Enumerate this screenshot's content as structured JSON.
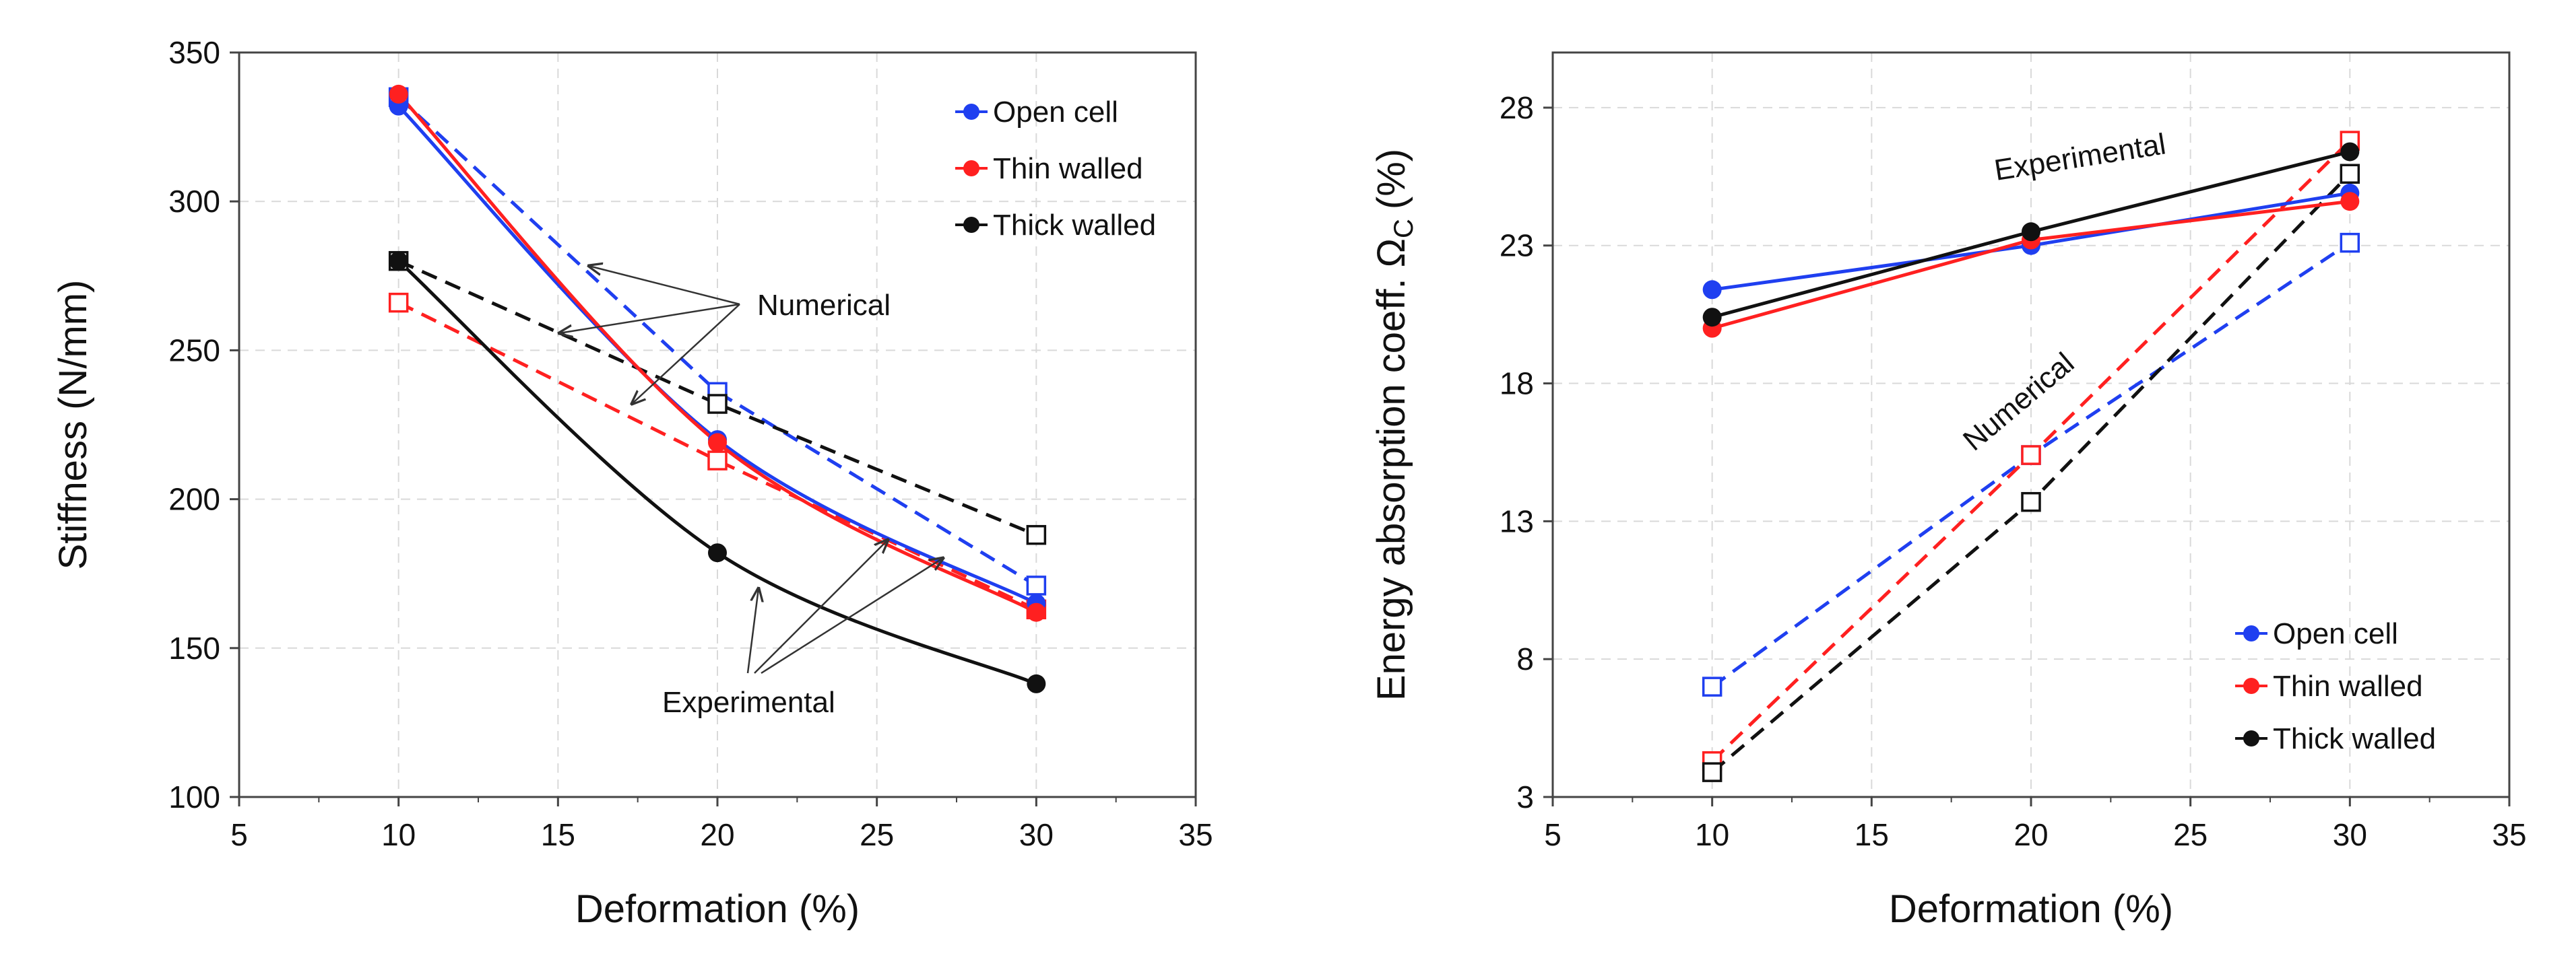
{
  "chart_data": [
    {
      "type": "line",
      "title": "",
      "xlabel": "Deformation (%)",
      "ylabel": "Stiffness (N/mm)",
      "xlim": [
        5,
        35
      ],
      "ylim": [
        100,
        350
      ],
      "xticks": [
        5,
        10,
        15,
        20,
        25,
        30,
        35
      ],
      "yticks": [
        100,
        150,
        200,
        250,
        300,
        350
      ],
      "grid": true,
      "legend_position": "top-right",
      "series": [
        {
          "name": "Open cell",
          "kind": "experimental",
          "color": "#1f3ff0",
          "smooth": true,
          "x": [
            10,
            20,
            30
          ],
          "y": [
            332,
            220,
            165
          ]
        },
        {
          "name": "Thin walled",
          "kind": "experimental",
          "color": "#ff2020",
          "smooth": true,
          "x": [
            10,
            20,
            30
          ],
          "y": [
            336,
            219,
            162
          ]
        },
        {
          "name": "Thick walled",
          "kind": "experimental",
          "color": "#111111",
          "smooth": true,
          "x": [
            10,
            20,
            30
          ],
          "y": [
            280,
            182,
            138
          ]
        },
        {
          "name": "Open cell",
          "kind": "numerical",
          "color": "#1f3ff0",
          "x": [
            10,
            20,
            30
          ],
          "y": [
            335,
            236,
            171
          ]
        },
        {
          "name": "Thin walled",
          "kind": "numerical",
          "color": "#ff2020",
          "x": [
            10,
            20,
            30
          ],
          "y": [
            266,
            213,
            163
          ]
        },
        {
          "name": "Thick walled",
          "kind": "numerical",
          "color": "#111111",
          "x": [
            10,
            20,
            30
          ],
          "y": [
            280,
            232,
            188
          ]
        }
      ],
      "annotations": [
        "Numerical",
        "Experimental"
      ]
    },
    {
      "type": "line",
      "title": "",
      "xlabel": "Deformation (%)",
      "ylabel": "Energy absorption coeff. Ω",
      "ylabel_subscript": "C",
      "ylabel_unit": "(%)",
      "xlim": [
        5,
        35
      ],
      "ylim": [
        3,
        30
      ],
      "xticks": [
        5,
        10,
        15,
        20,
        25,
        30,
        35
      ],
      "yticks": [
        3,
        8,
        13,
        18,
        23,
        28
      ],
      "grid": true,
      "legend_position": "bottom-right",
      "series": [
        {
          "name": "Open cell",
          "kind": "experimental",
          "color": "#1f3ff0",
          "x": [
            10,
            20,
            30
          ],
          "y": [
            21.4,
            23.0,
            24.9
          ]
        },
        {
          "name": "Thin walled",
          "kind": "experimental",
          "color": "#ff2020",
          "x": [
            10,
            20,
            30
          ],
          "y": [
            20.0,
            23.2,
            24.6
          ]
        },
        {
          "name": "Thick walled",
          "kind": "experimental",
          "color": "#111111",
          "x": [
            10,
            20,
            30
          ],
          "y": [
            20.4,
            23.5,
            26.4
          ]
        },
        {
          "name": "Open cell",
          "kind": "numerical",
          "color": "#1f3ff0",
          "x": [
            10,
            20,
            30
          ],
          "y": [
            7.0,
            15.4,
            23.1
          ]
        },
        {
          "name": "Thin walled",
          "kind": "numerical",
          "color": "#ff2020",
          "x": [
            10,
            20,
            30
          ],
          "y": [
            4.3,
            15.4,
            26.8
          ]
        },
        {
          "name": "Thick walled",
          "kind": "numerical",
          "color": "#111111",
          "x": [
            10,
            20,
            30
          ],
          "y": [
            3.9,
            13.7,
            25.6
          ]
        }
      ],
      "annotations": [
        "Experimental",
        "Numerical"
      ]
    }
  ]
}
